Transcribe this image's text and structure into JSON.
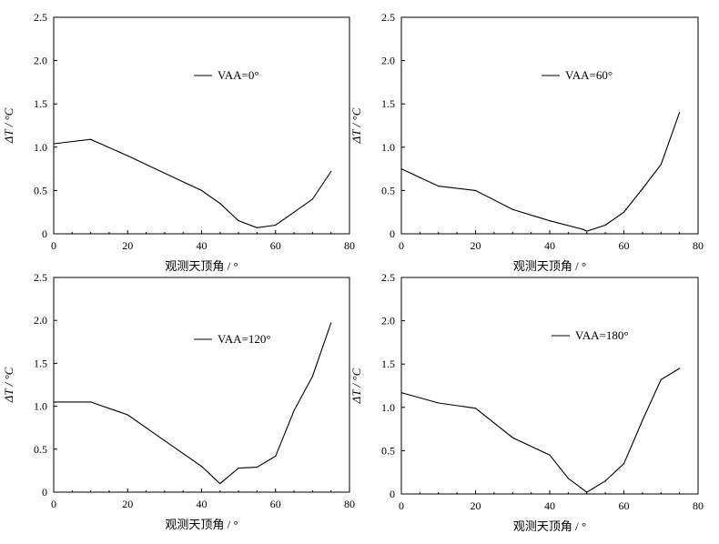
{
  "chart_data": [
    {
      "type": "line",
      "xlabel": "观测天顶角 / °",
      "ylabel": "ΔT / °C",
      "xlim": [
        0,
        80
      ],
      "ylim": [
        0,
        2.5
      ],
      "xticks": [
        "0",
        "20",
        "40",
        "60",
        "80"
      ],
      "yticks": [
        "0",
        "0.5",
        "1.0",
        "1.5",
        "2.0",
        "2.5"
      ],
      "legend_position": "upper-center",
      "series": [
        {
          "name": "VAA=0°",
          "color": "#000000",
          "x": [
            0,
            10,
            20,
            30,
            40,
            45,
            50,
            55,
            60,
            65,
            70,
            75
          ],
          "y": [
            1.04,
            1.09,
            0.9,
            0.7,
            0.5,
            0.35,
            0.15,
            0.07,
            0.1,
            0.25,
            0.4,
            0.72
          ]
        }
      ]
    },
    {
      "type": "line",
      "xlabel": "观测天顶角 / °",
      "ylabel": "ΔT / °C",
      "xlim": [
        0,
        80
      ],
      "ylim": [
        0,
        2.5
      ],
      "xticks": [
        "0",
        "20",
        "40",
        "60",
        "80"
      ],
      "yticks": [
        "0",
        "0.5",
        "1.0",
        "1.5",
        "2.0",
        "2.5"
      ],
      "legend_position": "upper-center",
      "series": [
        {
          "name": "VAA=60°",
          "color": "#000000",
          "x": [
            0,
            5,
            10,
            20,
            30,
            40,
            49,
            50,
            55,
            60,
            65,
            70,
            75
          ],
          "y": [
            0.75,
            0.65,
            0.55,
            0.5,
            0.28,
            0.15,
            0.05,
            0.03,
            0.1,
            0.25,
            0.52,
            0.8,
            1.4
          ]
        }
      ]
    },
    {
      "type": "line",
      "xlabel": "观测天顶角 / °",
      "ylabel": "ΔT / °C",
      "xlim": [
        0,
        80
      ],
      "ylim": [
        0,
        2.5
      ],
      "xticks": [
        "0",
        "20",
        "40",
        "60",
        "80"
      ],
      "yticks": [
        "0",
        "0.5",
        "1.0",
        "1.5",
        "2.0",
        "2.5"
      ],
      "legend_position": "upper-center",
      "series": [
        {
          "name": "VAA=120°",
          "color": "#000000",
          "x": [
            0,
            10,
            20,
            30,
            40,
            45,
            50,
            55,
            60,
            65,
            70,
            75
          ],
          "y": [
            1.05,
            1.05,
            0.9,
            0.6,
            0.3,
            0.1,
            0.28,
            0.29,
            0.42,
            0.95,
            1.35,
            1.97
          ]
        }
      ]
    },
    {
      "type": "line",
      "xlabel": "观测天顶角 / °",
      "ylabel": "ΔT / °C",
      "xlim": [
        0,
        80
      ],
      "ylim": [
        0,
        2.5
      ],
      "xticks": [
        "0",
        "20",
        "40",
        "60",
        "80"
      ],
      "yticks": [
        "0",
        "0.5",
        "1.0",
        "1.5",
        "2.0",
        "2.5"
      ],
      "legend_position": "upper-center",
      "series": [
        {
          "name": "VAA=180°",
          "color": "#000000",
          "x": [
            0,
            10,
            20,
            30,
            40,
            45,
            50,
            55,
            60,
            65,
            70,
            75
          ],
          "y": [
            1.17,
            1.05,
            0.99,
            0.65,
            0.45,
            0.18,
            0.02,
            0.15,
            0.35,
            0.85,
            1.32,
            1.45
          ]
        }
      ]
    }
  ]
}
